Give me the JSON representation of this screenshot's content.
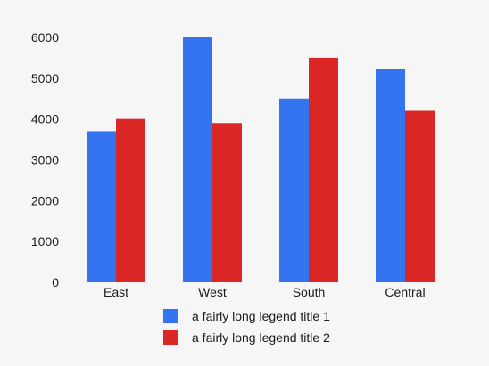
{
  "chart_data": {
    "type": "bar",
    "categories": [
      "East",
      "West",
      "South",
      "Central"
    ],
    "series": [
      {
        "name": "a fairly long legend title 1",
        "color": "#3574f0",
        "values": [
          3700,
          6000,
          4500,
          5230
        ]
      },
      {
        "name": "a fairly long legend title 2",
        "color": "#db2626",
        "values": [
          4000,
          3900,
          5500,
          4200
        ]
      }
    ],
    "yticks": [
      0,
      1000,
      2000,
      3000,
      4000,
      5000,
      6000
    ],
    "ylim": [
      0,
      6000
    ],
    "grid": false,
    "legend_position": "bottom",
    "title": "",
    "xlabel": "",
    "ylabel": ""
  }
}
